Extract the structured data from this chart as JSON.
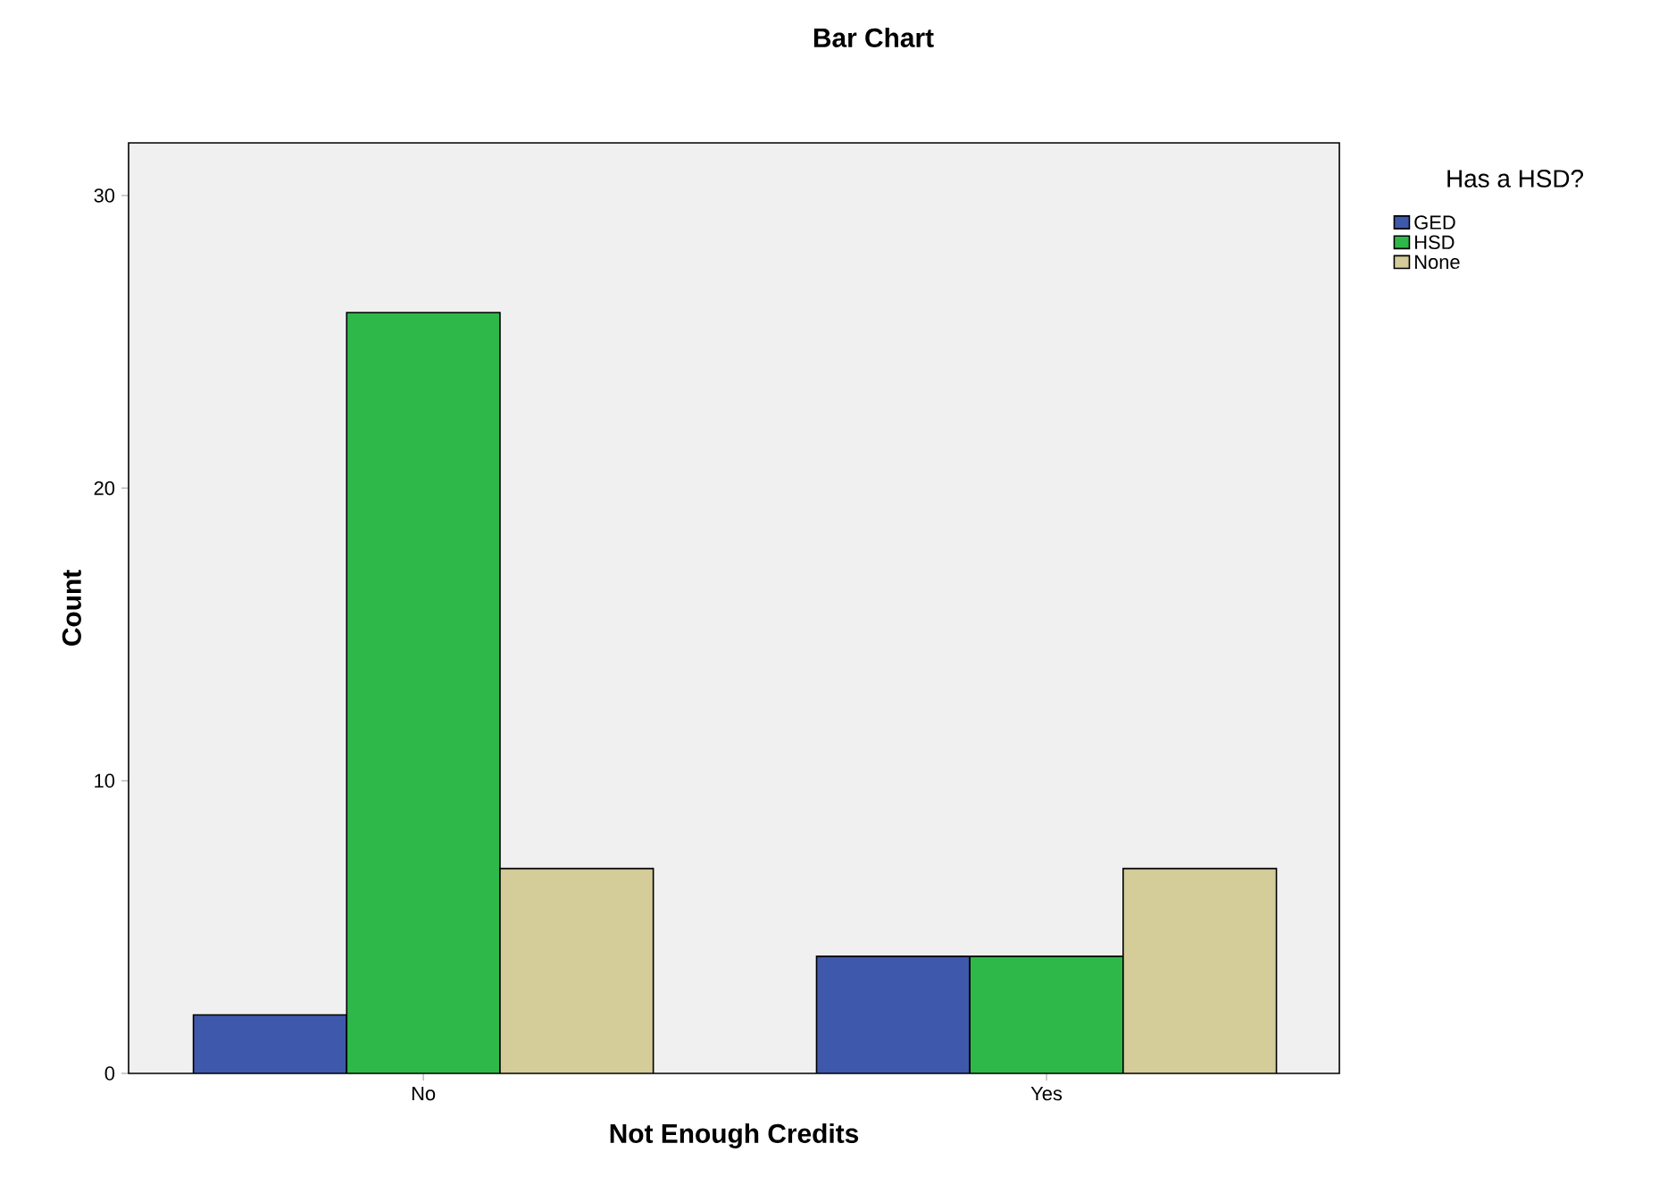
{
  "chart_data": {
    "type": "bar",
    "title": "Bar Chart",
    "xlabel": "Not Enough Credits",
    "ylabel": "Count",
    "legend_title": "Has a HSD?",
    "categories": [
      "No",
      "Yes"
    ],
    "series": [
      {
        "name": "GED",
        "color": "#3e58ac",
        "values": [
          2,
          4
        ]
      },
      {
        "name": "HSD",
        "color": "#2eb84a",
        "values": [
          26,
          4
        ]
      },
      {
        "name": "None",
        "color": "#d4cc99",
        "values": [
          7,
          7
        ]
      }
    ],
    "ylim": [
      0,
      31.8
    ],
    "yticks": [
      0,
      10,
      20,
      30
    ],
    "legend": "right"
  }
}
